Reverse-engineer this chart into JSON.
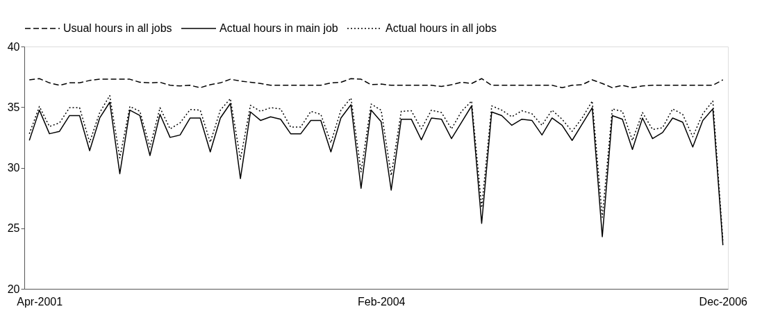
{
  "chart_data": {
    "type": "line",
    "categories": [
      null,
      "Apr-2001",
      null,
      null,
      null,
      null,
      null,
      null,
      null,
      null,
      null,
      null,
      null,
      null,
      null,
      null,
      null,
      null,
      null,
      null,
      null,
      null,
      null,
      null,
      null,
      null,
      null,
      null,
      null,
      null,
      null,
      null,
      null,
      null,
      null,
      "Feb-2004",
      null,
      null,
      null,
      null,
      null,
      null,
      null,
      null,
      null,
      null,
      null,
      null,
      null,
      null,
      null,
      null,
      null,
      null,
      null,
      null,
      null,
      null,
      null,
      null,
      null,
      null,
      null,
      null,
      null,
      null,
      null,
      null,
      null,
      "Dec-2006"
    ],
    "series": [
      {
        "name": "Usual hours in all jobs",
        "color": "#000000",
        "line_style": "dashed",
        "values": [
          37.25,
          37.35,
          37.0,
          36.8,
          37.0,
          37.0,
          37.2,
          37.3,
          37.3,
          37.3,
          37.3,
          37.05,
          37.0,
          37.05,
          36.8,
          36.75,
          36.8,
          36.6,
          36.85,
          37.0,
          37.3,
          37.15,
          37.05,
          36.95,
          36.8,
          36.8,
          36.8,
          36.8,
          36.8,
          36.8,
          37.0,
          37.05,
          37.35,
          37.3,
          36.85,
          36.9,
          36.8,
          36.8,
          36.8,
          36.8,
          36.8,
          36.7,
          36.85,
          37.05,
          36.95,
          37.35,
          36.8,
          36.8,
          36.8,
          36.8,
          36.8,
          36.8,
          36.8,
          36.6,
          36.8,
          36.85,
          37.25,
          36.95,
          36.6,
          36.8,
          36.6,
          36.75,
          36.8,
          36.8,
          36.8,
          36.8,
          36.8,
          36.8,
          36.8,
          37.25
        ]
      },
      {
        "name": "Actual hours in main job",
        "color": "#000000",
        "line_style": "solid",
        "values": [
          32.25,
          34.75,
          32.8,
          33.0,
          34.3,
          34.3,
          31.4,
          34.1,
          35.4,
          29.5,
          34.75,
          34.3,
          31.0,
          34.4,
          32.5,
          32.7,
          34.1,
          34.1,
          31.3,
          34.1,
          35.3,
          29.1,
          34.6,
          33.9,
          34.2,
          34.0,
          32.8,
          32.8,
          33.9,
          33.9,
          31.3,
          34.1,
          35.2,
          28.3,
          34.75,
          33.8,
          28.15,
          34.0,
          34.0,
          32.3,
          34.1,
          34.0,
          32.4,
          33.75,
          35.1,
          25.4,
          34.6,
          34.3,
          33.5,
          34.0,
          33.9,
          32.7,
          34.1,
          33.5,
          32.25,
          33.6,
          34.95,
          24.3,
          34.3,
          34.0,
          31.5,
          34.1,
          32.4,
          32.9,
          34.1,
          33.75,
          31.7,
          33.9,
          34.85,
          23.6
        ]
      },
      {
        "name": "Actual hours in all jobs",
        "color": "#000000",
        "line_style": "dotted",
        "values": [
          32.8,
          35.05,
          33.4,
          33.7,
          34.95,
          34.95,
          32.1,
          34.55,
          35.95,
          30.8,
          35.05,
          34.65,
          31.7,
          34.95,
          33.2,
          33.7,
          34.8,
          34.75,
          32.1,
          34.75,
          35.7,
          30.7,
          35.15,
          34.65,
          34.95,
          34.85,
          33.35,
          33.35,
          34.65,
          34.4,
          32.05,
          34.75,
          35.75,
          29.65,
          35.25,
          34.75,
          29.35,
          34.65,
          34.7,
          33.2,
          34.75,
          34.55,
          33.2,
          34.65,
          35.5,
          26.7,
          35.1,
          34.75,
          34.2,
          34.7,
          34.45,
          33.5,
          34.75,
          34.0,
          33.0,
          34.1,
          35.5,
          25.9,
          34.85,
          34.65,
          32.25,
          34.55,
          33.15,
          33.3,
          34.85,
          34.4,
          32.55,
          34.45,
          35.5,
          24.0
        ]
      }
    ],
    "ylim": [
      20,
      40
    ],
    "yticks": [
      20,
      25,
      30,
      35,
      40
    ],
    "grid": false,
    "legend": "top",
    "marker": "none"
  }
}
